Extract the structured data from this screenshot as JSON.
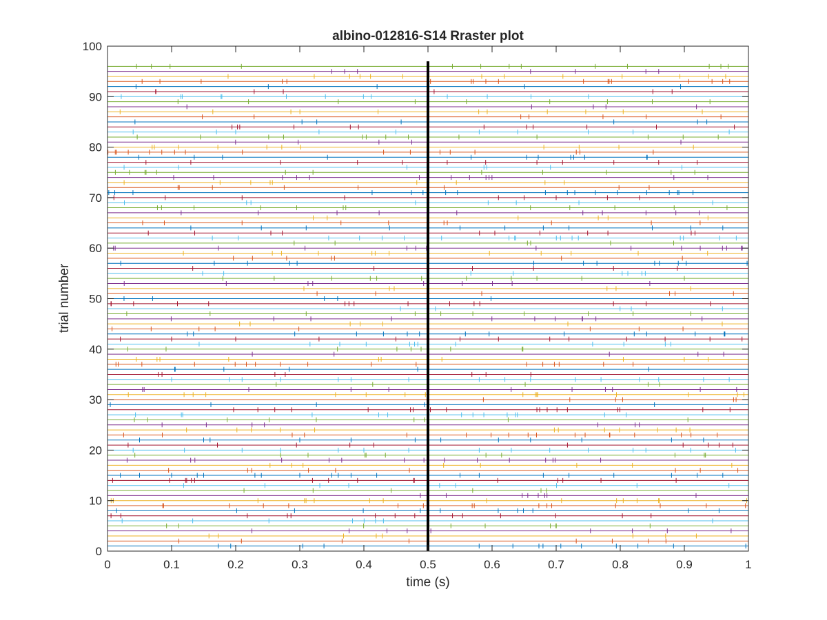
{
  "chart_data": {
    "type": "scatter",
    "title": "albino-012816-S14 Rraster plot",
    "xlabel": "time (s)",
    "ylabel": "trial number",
    "xlim": [
      0,
      1
    ],
    "ylim": [
      0,
      100
    ],
    "xticks": [
      "0",
      "0.1",
      "0.2",
      "0.3",
      "0.4",
      "0.5",
      "0.6",
      "0.7",
      "0.8",
      "0.9",
      "1"
    ],
    "yticks": [
      "0",
      "10",
      "20",
      "30",
      "40",
      "50",
      "60",
      "70",
      "80",
      "90",
      "100"
    ],
    "grid": false,
    "legend": "none",
    "event_marker": {
      "x": 0.5,
      "y_range": [
        0,
        97
      ],
      "color": "#000000"
    },
    "n_trials": 96,
    "trial_colors": [
      "#0072bd",
      "#d95319",
      "#edb120",
      "#7e2f8e",
      "#77ac30",
      "#4dbeee",
      "#a2142f"
    ],
    "series": [
      {
        "name": "",
        "trial": 15,
        "x": [
          0.02,
          0.05,
          0.1,
          0.14,
          0.15,
          0.23,
          0.24,
          0.3,
          0.35,
          0.36,
          0.38,
          0.42,
          0.55,
          0.58,
          0.68,
          0.72,
          0.79,
          0.88,
          0.92,
          0.96
        ]
      },
      {
        "name": "",
        "trial": 20,
        "x": [
          0.04,
          0.12,
          0.21,
          0.27,
          0.36,
          0.4,
          0.47,
          0.58,
          0.63,
          0.69,
          0.75,
          0.82,
          0.84,
          0.91,
          0.98
        ]
      },
      {
        "name": "",
        "trial": 22,
        "x": [
          0.05,
          0.15,
          0.16,
          0.3,
          0.38,
          0.48,
          0.52,
          0.61,
          0.66,
          0.74,
          0.88,
          0.93
        ]
      },
      {
        "name": "",
        "trial": 34,
        "x": [
          0.1,
          0.19,
          0.21,
          0.27,
          0.36,
          0.38,
          0.47,
          0.58,
          0.62,
          0.66,
          0.73,
          0.77,
          0.83,
          0.86,
          0.93,
          0.97
        ]
      },
      {
        "name": "",
        "trial": 42,
        "x": [
          0.02,
          0.1,
          0.2,
          0.33,
          0.45,
          0.55,
          0.61,
          0.69,
          0.72,
          0.81,
          0.87,
          0.94,
          0.99
        ]
      },
      {
        "name": "",
        "trial": 47,
        "x": [
          0.03,
          0.16,
          0.31,
          0.48,
          0.52,
          0.57,
          0.65,
          0.75,
          0.82,
          0.91
        ]
      },
      {
        "name": "",
        "trial": 54,
        "x": [
          0.18,
          0.26,
          0.35,
          0.41,
          0.42,
          0.49,
          0.56,
          0.63,
          0.67,
          0.74,
          0.9
        ]
      },
      {
        "name": "",
        "trial": 64,
        "x": [
          0.13,
          0.24,
          0.31,
          0.44,
          0.55,
          0.62,
          0.68,
          0.72,
          0.85,
          0.91,
          0.96
        ]
      },
      {
        "name": "",
        "trial": 70,
        "x": [
          0.01,
          0.09,
          0.21,
          0.37,
          0.5,
          0.61,
          0.65,
          0.7,
          0.78,
          0.83
        ]
      },
      {
        "name": "",
        "trial": 77,
        "x": [
          0.06,
          0.13,
          0.27,
          0.39,
          0.46,
          0.53,
          0.59,
          0.67,
          0.71,
          0.79,
          0.86,
          0.92
        ]
      },
      {
        "name": "",
        "trial": 83,
        "x": [
          0.04,
          0.17,
          0.2,
          0.33,
          0.45,
          0.58,
          0.64,
          0.75,
          0.82,
          0.97
        ]
      },
      {
        "name": "",
        "trial": 89,
        "x": [
          0.11,
          0.22,
          0.36,
          0.48,
          0.56,
          0.69,
          0.78,
          0.85,
          0.94
        ]
      },
      {
        "name": "",
        "trial": 95,
        "x": [
          0.35,
          0.37,
          0.39,
          0.66,
          0.73,
          0.84,
          0.86
        ]
      }
    ]
  }
}
